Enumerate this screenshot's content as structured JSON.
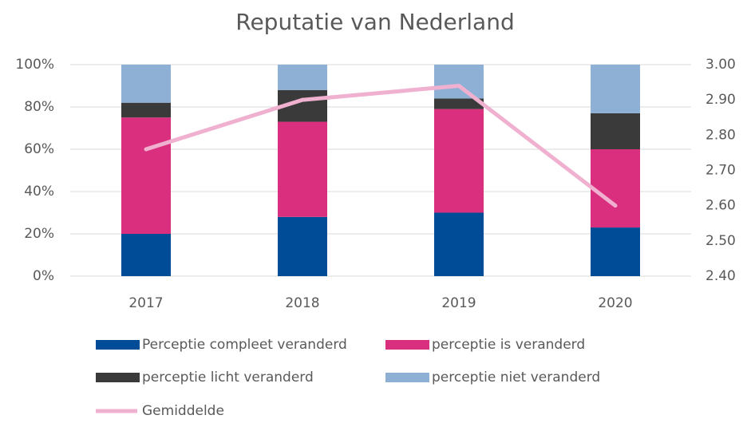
{
  "chart_data": {
    "type": "bar",
    "stacked": true,
    "title": "Reputatie van Nederland",
    "categories": [
      "2017",
      "2018",
      "2019",
      "2020"
    ],
    "series": [
      {
        "name": "Perceptie compleet veranderd",
        "color": "#004c97",
        "values": [
          20,
          28,
          30,
          23
        ]
      },
      {
        "name": "perceptie is veranderd",
        "color": "#da2f7f",
        "values": [
          55,
          45,
          49,
          37
        ]
      },
      {
        "name": "perceptie licht veranderd",
        "color": "#3a3a3a",
        "values": [
          7,
          15,
          5,
          17
        ]
      },
      {
        "name": "perceptie niet veranderd",
        "color": "#8eb0d5",
        "values": [
          18,
          12,
          16,
          23
        ]
      },
      {
        "name": "Gemiddelde",
        "color": "#f0b0cf",
        "type": "line",
        "axis": "y2",
        "values": [
          2.76,
          2.9,
          2.94,
          2.6
        ]
      }
    ],
    "ylim": [
      0,
      100
    ],
    "yticks": [
      {
        "value": 0,
        "label": "0%"
      },
      {
        "value": 20,
        "label": "20%"
      },
      {
        "value": 40,
        "label": "40%"
      },
      {
        "value": 60,
        "label": "60%"
      },
      {
        "value": 80,
        "label": "80%"
      },
      {
        "value": 100,
        "label": "100%"
      }
    ],
    "y2lim": [
      2.4,
      3.0
    ],
    "y2ticks": [
      {
        "value": 2.4,
        "label": "2.40"
      },
      {
        "value": 2.5,
        "label": "2.50"
      },
      {
        "value": 2.6,
        "label": "2.60"
      },
      {
        "value": 2.7,
        "label": "2.70"
      },
      {
        "value": 2.8,
        "label": "2.80"
      },
      {
        "value": 2.9,
        "label": "2.90"
      },
      {
        "value": 3.0,
        "label": "3.00"
      }
    ],
    "grid": true,
    "legend": "bottom"
  }
}
